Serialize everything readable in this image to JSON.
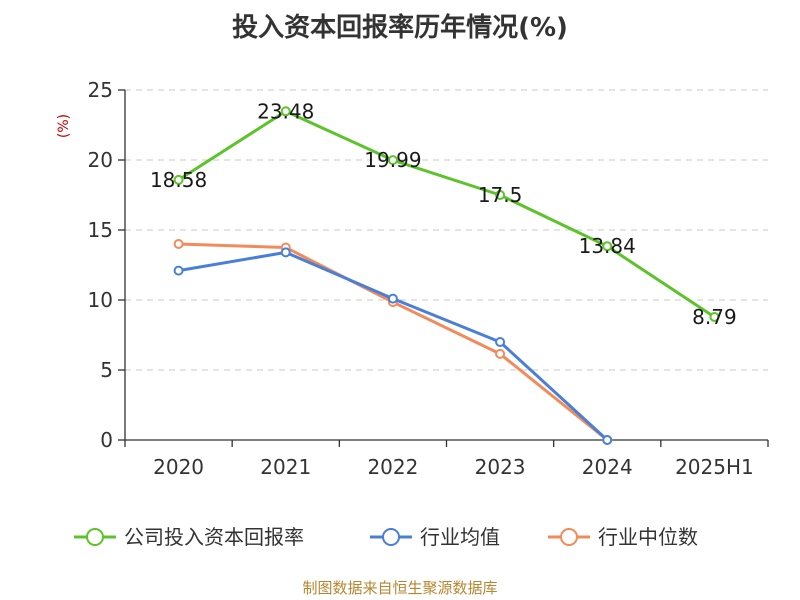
{
  "chart_data": {
    "type": "line",
    "title": "投入资本回报率历年情况(%)",
    "ylabel": "(%)",
    "ylim": [
      0,
      25
    ],
    "yticks": [
      0,
      5,
      10,
      15,
      20,
      25
    ],
    "categories": [
      "2020",
      "2021",
      "2022",
      "2023",
      "2024",
      "2025H1"
    ],
    "grid": true,
    "legend_position": "bottom",
    "series": [
      {
        "name": "公司投入资本回报率",
        "color": "#5cc42a",
        "values": [
          18.58,
          23.48,
          19.99,
          17.5,
          13.84,
          8.79
        ],
        "labels": [
          "18.58",
          "23.48",
          "19.99",
          "17.5",
          "13.84",
          "8.79"
        ]
      },
      {
        "name": "行业均值",
        "color": "#4a7fd8",
        "values": [
          12.1,
          13.4,
          10.1,
          7.0,
          0.0,
          null
        ]
      },
      {
        "name": "行业中位数",
        "color": "#f28a5a",
        "values": [
          14.0,
          13.75,
          9.85,
          6.15,
          0.0,
          null
        ]
      }
    ],
    "source": "制图数据来自恒生聚源数据库"
  }
}
